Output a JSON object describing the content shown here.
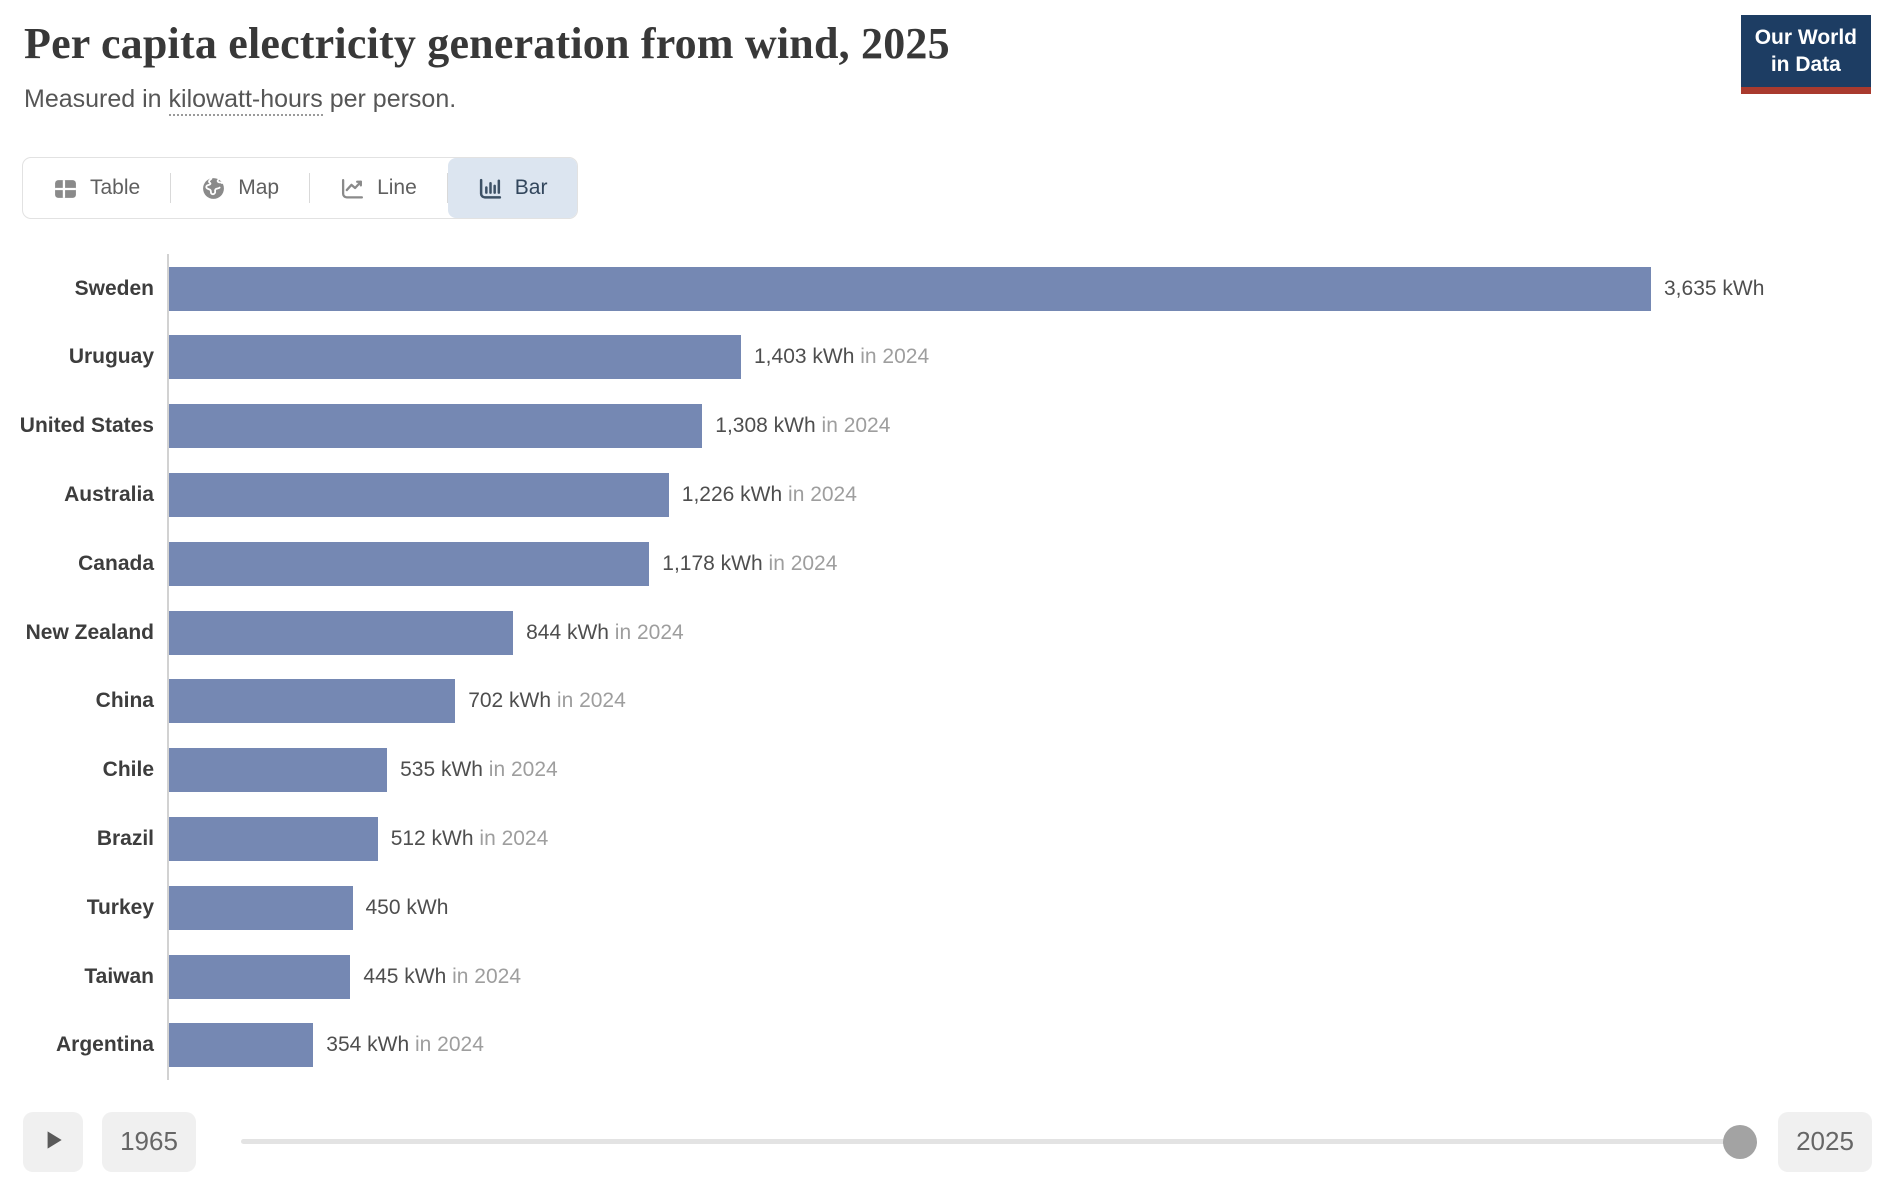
{
  "header": {
    "title": "Per capita electricity generation from wind, 2025",
    "subtitle_prefix": "Measured in ",
    "subtitle_term": "kilowatt-hours",
    "subtitle_suffix": " per person.",
    "logo": {
      "line1": "Our World",
      "line2": "in Data",
      "bg_color": "#1d3d63",
      "accent_color": "#a93a2e"
    }
  },
  "tabs": [
    {
      "label": "Table",
      "icon": "table-icon",
      "selected": false
    },
    {
      "label": "Map",
      "icon": "globe-icon",
      "selected": false
    },
    {
      "label": "Line",
      "icon": "line-chart-icon",
      "selected": false
    },
    {
      "label": "Bar",
      "icon": "bar-chart-icon",
      "selected": true
    }
  ],
  "chart_data": {
    "type": "bar",
    "orientation": "horizontal",
    "title": "Per capita electricity generation from wind, 2025",
    "unit": "kWh per person",
    "xlim": [
      0,
      3635
    ],
    "bar_color": "#7588b3",
    "grid": false,
    "categories": [
      "Sweden",
      "Uruguay",
      "United States",
      "Australia",
      "Canada",
      "New Zealand",
      "China",
      "Chile",
      "Brazil",
      "Turkey",
      "Taiwan",
      "Argentina"
    ],
    "values": [
      3635,
      1403,
      1308,
      1226,
      1178,
      844,
      702,
      535,
      512,
      450,
      445,
      354
    ],
    "rows": [
      {
        "country": "Sweden",
        "value": 3635,
        "value_label": "3,635 kWh",
        "year_note": ""
      },
      {
        "country": "Uruguay",
        "value": 1403,
        "value_label": "1,403 kWh",
        "year_note": "in 2024"
      },
      {
        "country": "United States",
        "value": 1308,
        "value_label": "1,308 kWh",
        "year_note": "in 2024"
      },
      {
        "country": "Australia",
        "value": 1226,
        "value_label": "1,226 kWh",
        "year_note": "in 2024"
      },
      {
        "country": "Canada",
        "value": 1178,
        "value_label": "1,178 kWh",
        "year_note": "in 2024"
      },
      {
        "country": "New Zealand",
        "value": 844,
        "value_label": "844 kWh",
        "year_note": "in 2024"
      },
      {
        "country": "China",
        "value": 702,
        "value_label": "702 kWh",
        "year_note": "in 2024"
      },
      {
        "country": "Chile",
        "value": 535,
        "value_label": "535 kWh",
        "year_note": "in 2024"
      },
      {
        "country": "Brazil",
        "value": 512,
        "value_label": "512 kWh",
        "year_note": "in 2024"
      },
      {
        "country": "Turkey",
        "value": 450,
        "value_label": "450 kWh",
        "year_note": ""
      },
      {
        "country": "Taiwan",
        "value": 445,
        "value_label": "445 kWh",
        "year_note": "in 2024"
      },
      {
        "country": "Argentina",
        "value": 354,
        "value_label": "354 kWh",
        "year_note": "in 2024"
      }
    ]
  },
  "timeline": {
    "start_year": "1965",
    "end_year": "2025",
    "handle_position": "end"
  }
}
